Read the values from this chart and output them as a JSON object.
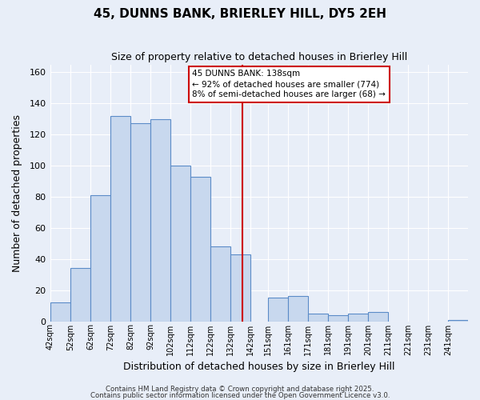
{
  "title": "45, DUNNS BANK, BRIERLEY HILL, DY5 2EH",
  "subtitle": "Size of property relative to detached houses in Brierley Hill",
  "xlabel": "Distribution of detached houses by size in Brierley Hill",
  "ylabel": "Number of detached properties",
  "bar_lefts": [
    42,
    52,
    62,
    72,
    82,
    92,
    102,
    112,
    122,
    132,
    142,
    151,
    161,
    171,
    181,
    191,
    201,
    211,
    221,
    231,
    241
  ],
  "bar_widths": [
    10,
    10,
    10,
    10,
    10,
    10,
    10,
    10,
    10,
    10,
    9,
    10,
    10,
    10,
    10,
    10,
    10,
    10,
    10,
    10,
    10
  ],
  "bar_heights": [
    12,
    34,
    81,
    132,
    127,
    130,
    100,
    93,
    48,
    43,
    0,
    15,
    16,
    5,
    4,
    5,
    6,
    0,
    0,
    0,
    1
  ],
  "bar_color": "#c8d8ee",
  "bar_edge_color": "#5b8cc8",
  "marker_x": 138,
  "marker_color": "#cc0000",
  "xlim": [
    42,
    251
  ],
  "ylim": [
    0,
    165
  ],
  "yticks": [
    0,
    20,
    40,
    60,
    80,
    100,
    120,
    140,
    160
  ],
  "xtick_positions": [
    42,
    52,
    62,
    72,
    82,
    92,
    102,
    112,
    122,
    132,
    142,
    151,
    161,
    171,
    181,
    191,
    201,
    211,
    221,
    231,
    241
  ],
  "xtick_labels": [
    "42sqm",
    "52sqm",
    "62sqm",
    "72sqm",
    "82sqm",
    "92sqm",
    "102sqm",
    "112sqm",
    "122sqm",
    "132sqm",
    "142sqm",
    "151sqm",
    "161sqm",
    "171sqm",
    "181sqm",
    "191sqm",
    "201sqm",
    "211sqm",
    "221sqm",
    "231sqm",
    "241sqm"
  ],
  "annotation_title": "45 DUNNS BANK: 138sqm",
  "annotation_line1": "← 92% of detached houses are smaller (774)",
  "annotation_line2": "8% of semi-detached houses are larger (68) →",
  "bg_color": "#e8eef8",
  "grid_color": "#ffffff",
  "footer1": "Contains HM Land Registry data © Crown copyright and database right 2025.",
  "footer2": "Contains public sector information licensed under the Open Government Licence v3.0."
}
